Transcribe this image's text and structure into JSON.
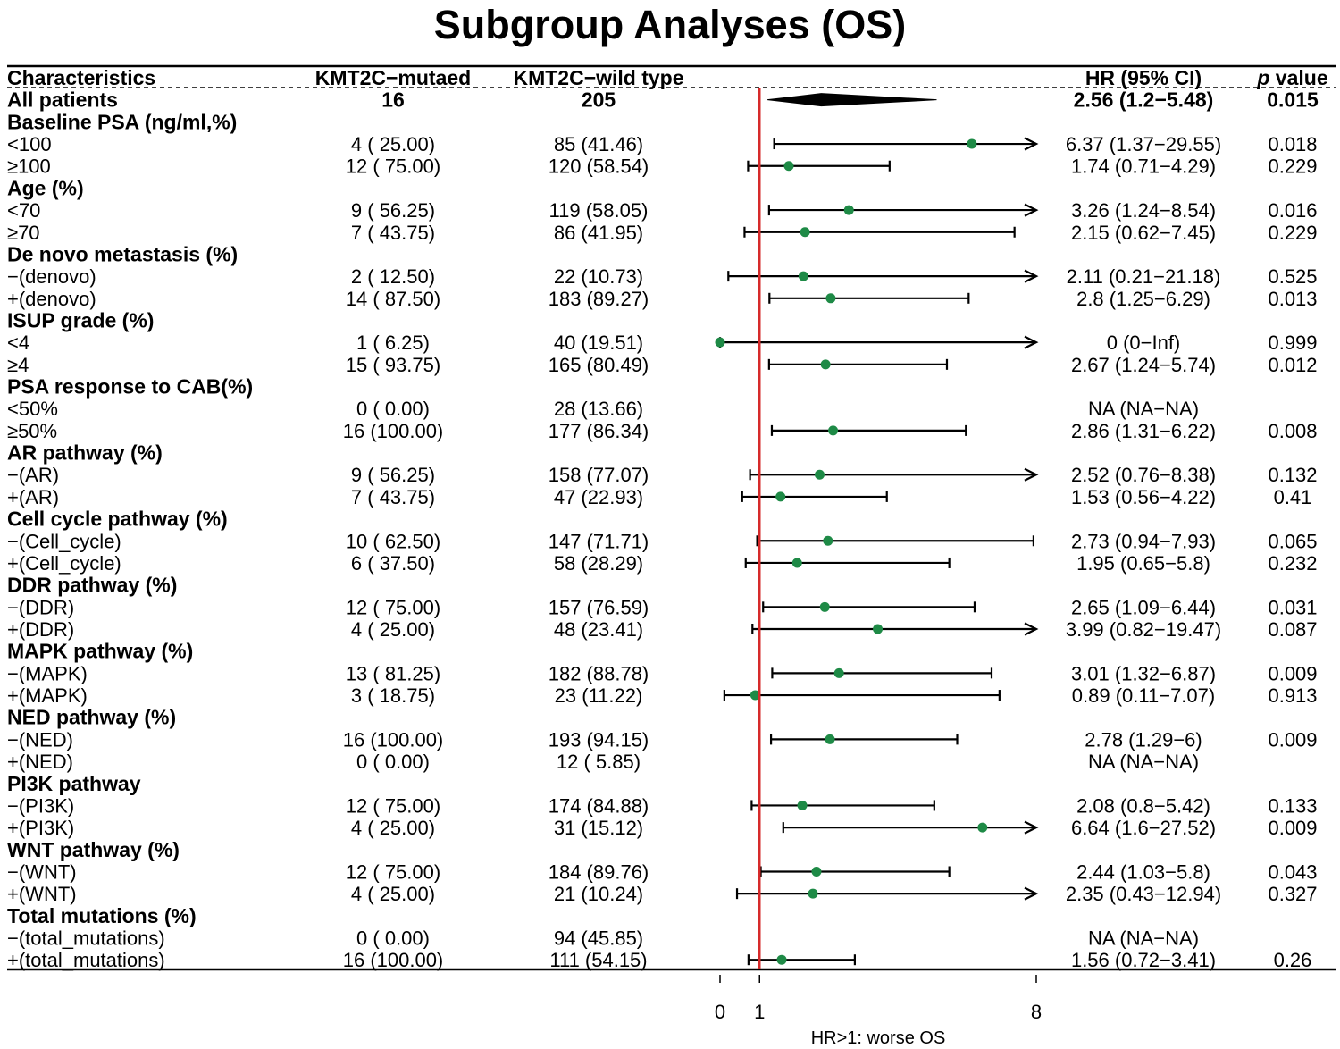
{
  "chart_data": {
    "type": "forest",
    "title": "Subgroup Analyses (OS)",
    "headers": {
      "characteristics": "Characteristics",
      "mutated": "KMT2C−mutaed",
      "wildtype": "KMT2C−wild type",
      "hr": "HR (95% CI)",
      "pvalue_p": "p",
      "pvalue_rest": " value"
    },
    "x_axis": {
      "ticks": [
        0,
        1,
        8
      ],
      "tick_labels": [
        "0",
        "1",
        "8"
      ],
      "reference_line": 1,
      "label": "HR>1: worse OS",
      "xlim": [
        0,
        8
      ]
    },
    "overall": {
      "label": "All patients",
      "mutated": "16",
      "wildtype": "205",
      "hr_text": "2.56 (1.2−5.48)",
      "p": "0.015",
      "hr": 2.56,
      "lower": 1.2,
      "upper": 5.48
    },
    "groups": [
      {
        "title": "Baseline PSA (ng/ml,%)",
        "rows": [
          {
            "label": "<100",
            "mutated": "4 ( 25.00)",
            "wildtype": "85 (41.46)",
            "hr_text": "6.37 (1.37−29.55)",
            "p": "0.018",
            "hr": 6.37,
            "lower": 1.37,
            "upper": 29.55
          },
          {
            "label": "≥100",
            "mutated": "12 ( 75.00)",
            "wildtype": "120 (58.54)",
            "hr_text": "1.74 (0.71−4.29)",
            "p": "0.229",
            "hr": 1.74,
            "lower": 0.71,
            "upper": 4.29
          }
        ]
      },
      {
        "title": "Age (%)",
        "rows": [
          {
            "label": "<70",
            "mutated": "9 ( 56.25)",
            "wildtype": "119 (58.05)",
            "hr_text": "3.26 (1.24−8.54)",
            "p": "0.016",
            "hr": 3.26,
            "lower": 1.24,
            "upper": 8.54
          },
          {
            "label": "≥70",
            "mutated": "7 ( 43.75)",
            "wildtype": "86 (41.95)",
            "hr_text": "2.15 (0.62−7.45)",
            "p": "0.229",
            "hr": 2.15,
            "lower": 0.62,
            "upper": 7.45
          }
        ]
      },
      {
        "title": "De novo metastasis (%)",
        "rows": [
          {
            "label": "−(denovo)",
            "mutated": "2 ( 12.50)",
            "wildtype": "22 (10.73)",
            "hr_text": "2.11 (0.21−21.18)",
            "p": "0.525",
            "hr": 2.11,
            "lower": 0.21,
            "upper": 21.18
          },
          {
            "label": "+(denovo)",
            "mutated": "14 ( 87.50)",
            "wildtype": "183 (89.27)",
            "hr_text": "2.8 (1.25−6.29)",
            "p": "0.013",
            "hr": 2.8,
            "lower": 1.25,
            "upper": 6.29
          }
        ]
      },
      {
        "title": "ISUP grade (%)",
        "rows": [
          {
            "label": "<4",
            "mutated": "1 (  6.25)",
            "wildtype": "40 (19.51)",
            "hr_text": "0 (0−Inf)",
            "p": "0.999",
            "hr": 0,
            "lower": 0,
            "upper": null
          },
          {
            "label": "≥4",
            "mutated": "15 ( 93.75)",
            "wildtype": "165 (80.49)",
            "hr_text": "2.67 (1.24−5.74)",
            "p": "0.012",
            "hr": 2.67,
            "lower": 1.24,
            "upper": 5.74
          }
        ]
      },
      {
        "title": "PSA response to CAB(%)",
        "rows": [
          {
            "label": "<50%",
            "mutated": "0 (  0.00)",
            "wildtype": "28 (13.66)",
            "hr_text": "NA (NA−NA)",
            "p": "",
            "hr": null,
            "lower": null,
            "upper": null
          },
          {
            "label": "≥50%",
            "mutated": "16 (100.00)",
            "wildtype": "177 (86.34)",
            "hr_text": "2.86 (1.31−6.22)",
            "p": "0.008",
            "hr": 2.86,
            "lower": 1.31,
            "upper": 6.22
          }
        ]
      },
      {
        "title": "AR pathway (%)",
        "rows": [
          {
            "label": "−(AR)",
            "mutated": "9 ( 56.25)",
            "wildtype": "158 (77.07)",
            "hr_text": "2.52 (0.76−8.38)",
            "p": "0.132",
            "hr": 2.52,
            "lower": 0.76,
            "upper": 8.38
          },
          {
            "label": "+(AR)",
            "mutated": "7 ( 43.75)",
            "wildtype": "47 (22.93)",
            "hr_text": "1.53 (0.56−4.22)",
            "p": "0.41",
            "hr": 1.53,
            "lower": 0.56,
            "upper": 4.22
          }
        ]
      },
      {
        "title": "Cell cycle pathway (%)",
        "rows": [
          {
            "label": "−(Cell_cycle)",
            "mutated": "10 ( 62.50)",
            "wildtype": "147 (71.71)",
            "hr_text": "2.73 (0.94−7.93)",
            "p": "0.065",
            "hr": 2.73,
            "lower": 0.94,
            "upper": 7.93
          },
          {
            "label": "+(Cell_cycle)",
            "mutated": "6 ( 37.50)",
            "wildtype": "58 (28.29)",
            "hr_text": "1.95 (0.65−5.8)",
            "p": "0.232",
            "hr": 1.95,
            "lower": 0.65,
            "upper": 5.8
          }
        ]
      },
      {
        "title": "DDR pathway (%)",
        "rows": [
          {
            "label": "−(DDR)",
            "mutated": "12 ( 75.00)",
            "wildtype": "157 (76.59)",
            "hr_text": "2.65 (1.09−6.44)",
            "p": "0.031",
            "hr": 2.65,
            "lower": 1.09,
            "upper": 6.44
          },
          {
            "label": "+(DDR)",
            "mutated": "4 ( 25.00)",
            "wildtype": "48 (23.41)",
            "hr_text": "3.99 (0.82−19.47)",
            "p": "0.087",
            "hr": 3.99,
            "lower": 0.82,
            "upper": 19.47
          }
        ]
      },
      {
        "title": "MAPK pathway (%)",
        "rows": [
          {
            "label": "−(MAPK)",
            "mutated": "13 ( 81.25)",
            "wildtype": "182 (88.78)",
            "hr_text": "3.01 (1.32−6.87)",
            "p": "0.009",
            "hr": 3.01,
            "lower": 1.32,
            "upper": 6.87
          },
          {
            "label": "+(MAPK)",
            "mutated": "3 ( 18.75)",
            "wildtype": "23 (11.22)",
            "hr_text": "0.89 (0.11−7.07)",
            "p": "0.913",
            "hr": 0.89,
            "lower": 0.11,
            "upper": 7.07
          }
        ]
      },
      {
        "title": "NED pathway (%)",
        "rows": [
          {
            "label": "−(NED)",
            "mutated": "16 (100.00)",
            "wildtype": "193 (94.15)",
            "hr_text": "2.78 (1.29−6)",
            "p": "0.009",
            "hr": 2.78,
            "lower": 1.29,
            "upper": 6
          },
          {
            "label": "+(NED)",
            "mutated": "0 (  0.00)",
            "wildtype": "12 ( 5.85)",
            "hr_text": "NA (NA−NA)",
            "p": "",
            "hr": null,
            "lower": null,
            "upper": null
          }
        ]
      },
      {
        "title": "PI3K pathway",
        "rows": [
          {
            "label": "−(PI3K)",
            "mutated": "12 ( 75.00)",
            "wildtype": "174 (84.88)",
            "hr_text": "2.08 (0.8−5.42)",
            "p": "0.133",
            "hr": 2.08,
            "lower": 0.8,
            "upper": 5.42
          },
          {
            "label": "+(PI3K)",
            "mutated": "4 ( 25.00)",
            "wildtype": "31 (15.12)",
            "hr_text": "6.64 (1.6−27.52)",
            "p": "0.009",
            "hr": 6.64,
            "lower": 1.6,
            "upper": 27.52
          }
        ]
      },
      {
        "title": "WNT pathway (%)",
        "rows": [
          {
            "label": "−(WNT)",
            "mutated": "12 ( 75.00)",
            "wildtype": "184 (89.76)",
            "hr_text": "2.44 (1.03−5.8)",
            "p": "0.043",
            "hr": 2.44,
            "lower": 1.03,
            "upper": 5.8
          },
          {
            "label": "+(WNT)",
            "mutated": "4 ( 25.00)",
            "wildtype": "21 (10.24)",
            "hr_text": "2.35 (0.43−12.94)",
            "p": "0.327",
            "hr": 2.35,
            "lower": 0.43,
            "upper": 12.94
          }
        ]
      },
      {
        "title": "Total mutations (%)",
        "rows": [
          {
            "label": "−(total_mutations)",
            "mutated": "0 (  0.00)",
            "wildtype": "94 (45.85)",
            "hr_text": "NA (NA−NA)",
            "p": "",
            "hr": null,
            "lower": null,
            "upper": null
          },
          {
            "label": "+(total_mutations)",
            "mutated": "16 (100.00)",
            "wildtype": "111 (54.15)",
            "hr_text": "1.56 (0.72−3.41)",
            "p": "0.26",
            "hr": 1.56,
            "lower": 0.72,
            "upper": 3.41
          }
        ]
      }
    ],
    "colors": {
      "point": "#1e8a46",
      "reference_line": "#d62a2a",
      "line": "#000000"
    }
  }
}
